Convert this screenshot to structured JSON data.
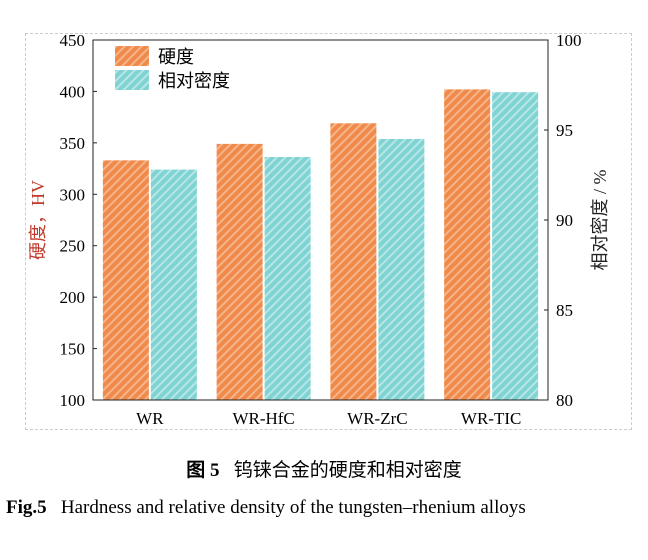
{
  "chart_data": {
    "type": "bar",
    "categories": [
      "WR",
      "WR-HfC",
      "WR-ZrC",
      "WR-TIC"
    ],
    "series": [
      {
        "name": "硬度",
        "axis": "left",
        "values": [
          333,
          349,
          369,
          402
        ],
        "color": "#f08a4b"
      },
      {
        "name": "相对密度",
        "axis": "right",
        "values": [
          92.8,
          93.5,
          94.5,
          97.1
        ],
        "color": "#7fd3d3"
      }
    ],
    "ylabel": "硬度，HV",
    "ylim": [
      100,
      450
    ],
    "yticks": [
      100,
      150,
      200,
      250,
      300,
      350,
      400,
      450
    ],
    "y2label": "相对密度 / %",
    "y2lim": [
      80,
      100
    ],
    "y2ticks": [
      80,
      85,
      90,
      95,
      100
    ],
    "legend": "top-left",
    "grid": false
  },
  "caption": {
    "cn_label": "图 5",
    "cn_text": "钨铼合金的硬度和相对密度",
    "en_label": "Fig.5",
    "en_text": "Hardness and relative density of the tungsten–rhenium alloys"
  }
}
